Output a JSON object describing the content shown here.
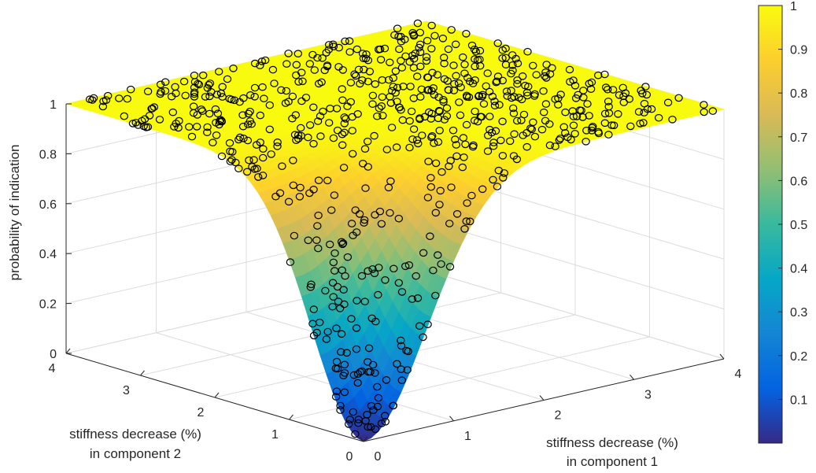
{
  "chart_data": {
    "type": "surface",
    "title": "",
    "xlabel": [
      "stiffness decrease (%)",
      "in component 1"
    ],
    "ylabel": [
      "stiffness decrease (%)",
      "in component 2"
    ],
    "zlabel": "probability of indication",
    "xlim": [
      0,
      4
    ],
    "ylim": [
      0,
      4
    ],
    "zlim": [
      0,
      1
    ],
    "x_ticks": [
      "0",
      "1",
      "2",
      "3",
      "4"
    ],
    "y_ticks": [
      "0",
      "1",
      "2",
      "3",
      "4"
    ],
    "z_ticks": [
      "0",
      "0.2",
      "0.4",
      "0.6",
      "0.8",
      "1"
    ],
    "grid": true,
    "colormap": "parula",
    "colorbar": {
      "range": [
        0,
        1
      ],
      "ticks": [
        "0.1",
        "0.2",
        "0.3",
        "0.4",
        "0.5",
        "0.6",
        "0.7",
        "0.8",
        "0.9",
        "1"
      ]
    },
    "surface_model": {
      "function": "1 - exp(-(x^2 + y^2) / (2 * sigma^2))",
      "sigma": 0.7
    },
    "scatter_markers": "open circles (black), sample indications"
  }
}
